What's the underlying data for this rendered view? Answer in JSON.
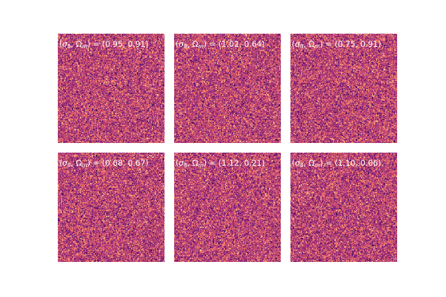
{
  "figure": {
    "background_color": "#ffffff",
    "label_text_color": "#ffffff"
  },
  "label_parts": {
    "open": "(",
    "sigma": "σ",
    "sigma_sub": "8",
    "comma": ", ",
    "omega": "Ω",
    "omega_sub": "m",
    "equals": ") = "
  },
  "chart_data": {
    "type": "heatmap",
    "layout": "2x3 grid of square image panels, no axes or ticks",
    "colormap": "magma",
    "colormap_stops": [
      "#000004",
      "#51127c",
      "#b73779",
      "#fc8961",
      "#fcfdbf"
    ],
    "noise_mean": 0.53,
    "noise_std": 0.16,
    "grid_resolution": 128,
    "panels": [
      {
        "sigma8": 0.95,
        "omega_m": 0.91,
        "values_text": "(0.95, 0.91)"
      },
      {
        "sigma8": 1.02,
        "omega_m": 0.64,
        "values_text": "(1.02, 0.64)"
      },
      {
        "sigma8": 0.75,
        "omega_m": 0.91,
        "values_text": "(0.75, 0.91)"
      },
      {
        "sigma8": 0.68,
        "omega_m": 0.67,
        "values_text": "(0.68, 0.67)"
      },
      {
        "sigma8": 1.12,
        "omega_m": 0.21,
        "values_text": "(1.12, 0.21)"
      },
      {
        "sigma8": 1.1,
        "omega_m": 0.06,
        "values_text": "(1.10, 0.06)"
      }
    ]
  }
}
